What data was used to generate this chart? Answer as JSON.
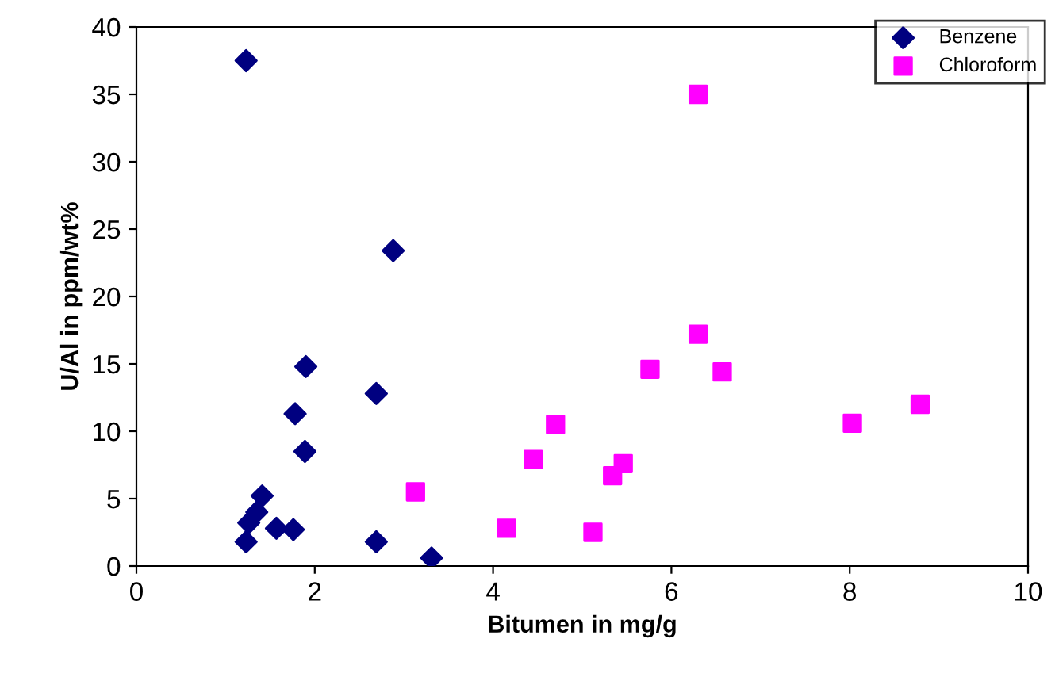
{
  "chart_data": {
    "type": "scatter",
    "xlabel": "Bitumen in mg/g",
    "ylabel": "U/Al in ppm/wt%",
    "xlim": [
      0,
      10
    ],
    "ylim": [
      0,
      40
    ],
    "xticks": [
      0,
      2,
      4,
      6,
      8,
      10
    ],
    "yticks": [
      0,
      5,
      10,
      15,
      20,
      25,
      30,
      35,
      40
    ],
    "grid": false,
    "legend": "top right",
    "series": [
      {
        "name": "Benzene",
        "color": "#000080",
        "marker": "diamond",
        "x": [
          1.23,
          2.88,
          1.9,
          2.69,
          1.78,
          1.89,
          1.41,
          1.35,
          1.26,
          1.57,
          1.76,
          1.23,
          2.69,
          3.31
        ],
        "values": [
          37.5,
          23.4,
          14.8,
          12.8,
          11.3,
          8.5,
          5.2,
          4.0,
          3.2,
          2.8,
          2.7,
          1.8,
          1.8,
          0.6
        ]
      },
      {
        "name": "Chloroform",
        "color": "#ff00ff",
        "marker": "square",
        "x": [
          6.3,
          6.3,
          5.76,
          6.57,
          4.7,
          8.03,
          8.79,
          4.45,
          5.46,
          5.34,
          3.13,
          4.15,
          5.12
        ],
        "values": [
          35.0,
          17.2,
          14.6,
          14.4,
          10.5,
          10.6,
          12.0,
          7.9,
          7.6,
          6.7,
          5.5,
          2.8,
          2.5
        ]
      }
    ]
  }
}
